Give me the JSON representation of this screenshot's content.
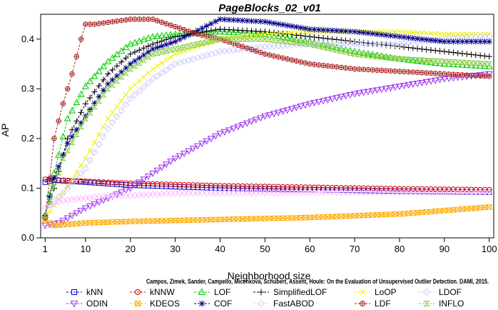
{
  "chart_data": {
    "type": "line",
    "title": "PageBlocks_02_v01",
    "xlabel": "Neighborhood size",
    "ylabel": "AP",
    "xlim": [
      0,
      101
    ],
    "ylim": [
      0,
      0.45
    ],
    "xticks": [
      1,
      10,
      20,
      30,
      40,
      50,
      60,
      70,
      80,
      90,
      100
    ],
    "yticks": [
      0.0,
      0.1,
      0.2,
      0.3,
      0.4
    ],
    "ytick_labels": [
      "0.0",
      "0.1",
      "0.2",
      "0.3",
      "0.4"
    ],
    "grid": false,
    "legend_position": "bottom",
    "watermark": "Campos, Zimek, Sander, Campello, Micenková, Schubert, Assent, Houle: On the Evaluation of Unsupervised Outlier Detection. DAMI, 2015.",
    "series": [
      {
        "name": "kNN",
        "color": "#0000cc",
        "marker": "square",
        "anchors": [
          [
            1,
            0.112
          ],
          [
            3,
            0.116
          ],
          [
            10,
            0.112
          ],
          [
            20,
            0.106
          ],
          [
            40,
            0.1
          ],
          [
            60,
            0.097
          ],
          [
            80,
            0.094
          ],
          [
            100,
            0.092
          ]
        ]
      },
      {
        "name": "kNNW",
        "color": "#cc0000",
        "marker": "circle",
        "anchors": [
          [
            1,
            0.118
          ],
          [
            5,
            0.116
          ],
          [
            10,
            0.114
          ],
          [
            20,
            0.11
          ],
          [
            40,
            0.105
          ],
          [
            60,
            0.102
          ],
          [
            80,
            0.099
          ],
          [
            100,
            0.097
          ]
        ]
      },
      {
        "name": "LOF",
        "color": "#00cc00",
        "marker": "triangle",
        "anchors": [
          [
            1,
            0.045
          ],
          [
            3,
            0.13
          ],
          [
            6,
            0.24
          ],
          [
            10,
            0.305
          ],
          [
            15,
            0.355
          ],
          [
            20,
            0.39
          ],
          [
            25,
            0.405
          ],
          [
            30,
            0.41
          ],
          [
            40,
            0.415
          ],
          [
            50,
            0.41
          ],
          [
            60,
            0.395
          ],
          [
            70,
            0.375
          ],
          [
            80,
            0.36
          ],
          [
            90,
            0.35
          ],
          [
            100,
            0.345
          ]
        ]
      },
      {
        "name": "SimplifiedLOF",
        "color": "#000000",
        "marker": "plus",
        "anchors": [
          [
            1,
            0.045
          ],
          [
            3,
            0.1
          ],
          [
            6,
            0.2
          ],
          [
            10,
            0.27
          ],
          [
            15,
            0.33
          ],
          [
            20,
            0.37
          ],
          [
            25,
            0.39
          ],
          [
            30,
            0.405
          ],
          [
            40,
            0.42
          ],
          [
            50,
            0.415
          ],
          [
            60,
            0.405
          ],
          [
            70,
            0.395
          ],
          [
            80,
            0.385
          ],
          [
            90,
            0.375
          ],
          [
            100,
            0.365
          ]
        ]
      },
      {
        "name": "LoOP",
        "color": "#eeee00",
        "marker": "x",
        "anchors": [
          [
            1,
            0.04
          ],
          [
            5,
            0.09
          ],
          [
            10,
            0.16
          ],
          [
            15,
            0.24
          ],
          [
            20,
            0.3
          ],
          [
            25,
            0.34
          ],
          [
            30,
            0.37
          ],
          [
            40,
            0.4
          ],
          [
            50,
            0.41
          ],
          [
            60,
            0.415
          ],
          [
            70,
            0.415
          ],
          [
            80,
            0.415
          ],
          [
            90,
            0.41
          ],
          [
            100,
            0.41
          ]
        ]
      },
      {
        "name": "LDOF",
        "color": "#ccccff",
        "marker": "diamond",
        "anchors": [
          [
            1,
            0.06
          ],
          [
            5,
            0.09
          ],
          [
            10,
            0.14
          ],
          [
            15,
            0.22
          ],
          [
            20,
            0.28
          ],
          [
            25,
            0.32
          ],
          [
            30,
            0.35
          ],
          [
            40,
            0.375
          ],
          [
            50,
            0.385
          ],
          [
            60,
            0.39
          ],
          [
            70,
            0.39
          ],
          [
            80,
            0.39
          ],
          [
            90,
            0.4
          ],
          [
            100,
            0.405
          ]
        ]
      },
      {
        "name": "ODIN",
        "color": "#9933ee",
        "marker": "invtriangle",
        "anchors": [
          [
            1,
            0.025
          ],
          [
            4,
            0.03
          ],
          [
            10,
            0.06
          ],
          [
            20,
            0.1
          ],
          [
            30,
            0.16
          ],
          [
            40,
            0.21
          ],
          [
            50,
            0.245
          ],
          [
            60,
            0.27
          ],
          [
            70,
            0.29
          ],
          [
            80,
            0.305
          ],
          [
            90,
            0.32
          ],
          [
            100,
            0.33
          ]
        ]
      },
      {
        "name": "KDEOS",
        "color": "#ffaa00",
        "marker": "box",
        "anchors": [
          [
            1,
            0.035
          ],
          [
            3,
            0.025
          ],
          [
            10,
            0.03
          ],
          [
            20,
            0.033
          ],
          [
            40,
            0.037
          ],
          [
            60,
            0.041
          ],
          [
            80,
            0.048
          ],
          [
            100,
            0.062
          ]
        ]
      },
      {
        "name": "COF",
        "color": "#000088",
        "marker": "star",
        "anchors": [
          [
            1,
            0.045
          ],
          [
            3,
            0.12
          ],
          [
            6,
            0.19
          ],
          [
            10,
            0.245
          ],
          [
            15,
            0.31
          ],
          [
            20,
            0.35
          ],
          [
            25,
            0.38
          ],
          [
            30,
            0.395
          ],
          [
            40,
            0.44
          ],
          [
            50,
            0.435
          ],
          [
            60,
            0.42
          ],
          [
            70,
            0.415
          ],
          [
            80,
            0.405
          ],
          [
            90,
            0.395
          ],
          [
            100,
            0.395
          ]
        ]
      },
      {
        "name": "FastABOD",
        "color": "#ffbbff",
        "marker": "diamond",
        "anchors": [
          [
            1,
            0.06
          ],
          [
            3,
            0.07
          ],
          [
            5,
            0.075
          ],
          [
            10,
            0.08
          ],
          [
            15,
            0.085
          ],
          [
            20,
            0.085
          ],
          [
            30,
            0.09
          ],
          [
            40,
            0.09
          ],
          [
            60,
            0.092
          ],
          [
            80,
            0.092
          ],
          [
            100,
            0.092
          ]
        ]
      },
      {
        "name": "LDF",
        "color": "#aa2222",
        "marker": "circleplus",
        "anchors": [
          [
            1,
            0.04
          ],
          [
            2,
            0.12
          ],
          [
            3,
            0.2
          ],
          [
            5,
            0.27
          ],
          [
            7,
            0.33
          ],
          [
            9,
            0.4
          ],
          [
            10,
            0.43
          ],
          [
            12,
            0.43
          ],
          [
            20,
            0.44
          ],
          [
            25,
            0.44
          ],
          [
            30,
            0.425
          ],
          [
            35,
            0.41
          ],
          [
            40,
            0.4
          ],
          [
            50,
            0.37
          ],
          [
            60,
            0.35
          ],
          [
            70,
            0.34
          ],
          [
            80,
            0.335
          ],
          [
            90,
            0.33
          ],
          [
            100,
            0.325
          ]
        ]
      },
      {
        "name": "INFLO",
        "color": "#88cc44",
        "marker": "hourglass",
        "anchors": [
          [
            1,
            0.045
          ],
          [
            5,
            0.16
          ],
          [
            10,
            0.24
          ],
          [
            15,
            0.3
          ],
          [
            20,
            0.34
          ],
          [
            25,
            0.37
          ],
          [
            30,
            0.38
          ],
          [
            40,
            0.4
          ],
          [
            50,
            0.4
          ],
          [
            60,
            0.39
          ],
          [
            70,
            0.37
          ],
          [
            80,
            0.36
          ],
          [
            90,
            0.355
          ],
          [
            100,
            0.35
          ]
        ]
      }
    ]
  }
}
